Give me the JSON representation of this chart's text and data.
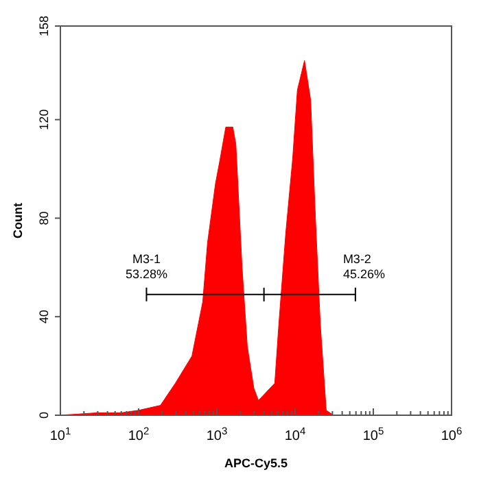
{
  "chart_data": {
    "type": "area",
    "xlabel": "APC-Cy5.5",
    "ylabel": "Count",
    "log": "x",
    "grid": false,
    "x": [
      10,
      30,
      60,
      100,
      190,
      295,
      480,
      660,
      760,
      960,
      1100,
      1300,
      1600,
      1750,
      2100,
      2450,
      2970,
      3400,
      5500,
      6200,
      7600,
      9300,
      10700,
      13200,
      15800,
      18200,
      21000,
      25000,
      31000,
      1000000
    ],
    "series": [
      {
        "color": "#ff0000",
        "values": [
          0,
          1,
          1,
          2,
          4,
          13,
          24,
          46,
          70,
          94,
          104,
          117,
          117,
          110,
          60,
          28,
          11,
          6,
          13,
          37,
          74,
          104,
          132,
          144,
          128,
          80,
          37,
          2,
          0,
          0
        ]
      },
      {
        "type": "line",
        "color": "#000000",
        "x": [
          126,
          4000,
          59000
        ],
        "values": [
          49,
          49,
          49
        ]
      }
    ],
    "annotations": [
      "M3-1\n53.28%",
      "M3-2\n45.26%"
    ],
    "xlim": [
      10,
      1000000
    ],
    "ylim": [
      0,
      158
    ],
    "xticks": [
      {
        "value": 10,
        "label": "10$^{1}$"
      },
      {
        "value": 20,
        "label": null
      },
      {
        "value": 30,
        "label": null
      },
      {
        "value": 40,
        "label": null
      },
      {
        "value": 50,
        "label": null
      },
      {
        "value": 60,
        "label": null
      },
      {
        "value": 70,
        "label": null
      },
      {
        "value": 80,
        "label": null
      },
      {
        "value": 90,
        "label": null
      },
      {
        "value": 100,
        "label": "10$^{2}$"
      },
      {
        "value": 200,
        "label": null
      },
      {
        "value": 300,
        "label": null
      },
      {
        "value": 400,
        "label": null
      },
      {
        "value": 500,
        "label": null
      },
      {
        "value": 600,
        "label": null
      },
      {
        "value": 700,
        "label": null
      },
      {
        "value": 800,
        "label": null
      },
      {
        "value": 900,
        "label": null
      },
      {
        "value": 1000,
        "label": "10$^{3}$"
      },
      {
        "value": 2000,
        "label": null
      },
      {
        "value": 3000,
        "label": null
      },
      {
        "value": 4000,
        "label": null
      },
      {
        "value": 5000,
        "label": null
      },
      {
        "value": 6000,
        "label": null
      },
      {
        "value": 7000,
        "label": null
      },
      {
        "value": 8000,
        "label": null
      },
      {
        "value": 9000,
        "label": null
      },
      {
        "value": 10000,
        "label": "10$^{4}$"
      },
      {
        "value": 20000,
        "label": null
      },
      {
        "value": 30000,
        "label": null
      },
      {
        "value": 40000,
        "label": null
      },
      {
        "value": 50000,
        "label": null
      },
      {
        "value": 60000,
        "label": null
      },
      {
        "value": 70000,
        "label": null
      },
      {
        "value": 80000,
        "label": null
      },
      {
        "value": 90000,
        "label": null
      },
      {
        "value": 100000,
        "label": "10$^{5}$"
      },
      {
        "value": 200000,
        "label": null
      },
      {
        "value": 300000,
        "label": null
      },
      {
        "value": 400000,
        "label": null
      },
      {
        "value": 500000,
        "label": null
      },
      {
        "value": 600000,
        "label": null
      },
      {
        "value": 700000,
        "label": null
      },
      {
        "value": 800000,
        "label": null
      },
      {
        "value": 900000,
        "label": null
      },
      {
        "value": 1000000,
        "label": "10$^{6}$"
      }
    ],
    "yticks": [
      0,
      40,
      80,
      120,
      158
    ]
  }
}
